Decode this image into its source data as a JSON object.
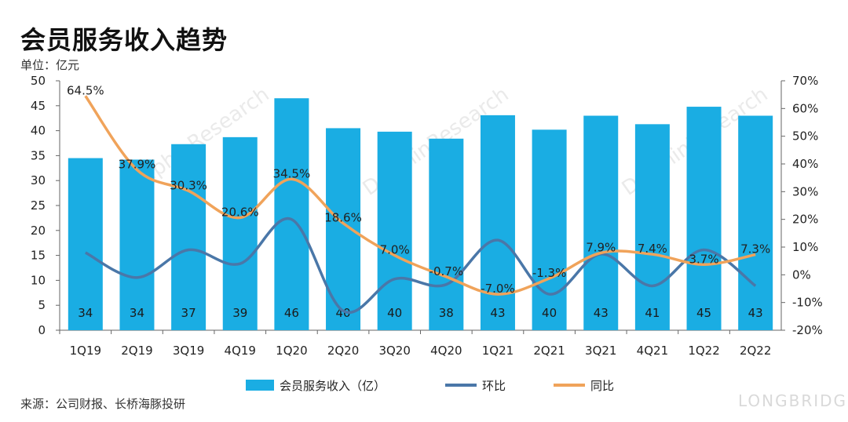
{
  "title": "会员服务收入趋势",
  "unit": "单位：亿元",
  "source": "来源：公司财报、长桥海豚投研",
  "watermark": {
    "brand": "DolphinResearch",
    "logo": "LONGBRIDGE"
  },
  "colors": {
    "bar": "#1AADE3",
    "qoq": "#4A77A8",
    "yoy": "#F0A35A"
  },
  "chart_data": {
    "type": "bar",
    "categories": [
      "1Q19",
      "2Q19",
      "3Q19",
      "4Q19",
      "1Q20",
      "2Q20",
      "3Q20",
      "4Q20",
      "1Q21",
      "2Q21",
      "3Q21",
      "4Q21",
      "1Q22",
      "2Q22"
    ],
    "left_axis": {
      "ylim": [
        0,
        50
      ],
      "ticks": [
        "0",
        "5",
        "10",
        "15",
        "20",
        "25",
        "30",
        "35",
        "40",
        "45",
        "50"
      ]
    },
    "right_axis": {
      "ylim": [
        -20,
        70
      ],
      "ticks": [
        "-20%",
        "-10%",
        "0%",
        "10%",
        "20%",
        "30%",
        "40%",
        "50%",
        "60%",
        "70%"
      ]
    },
    "legend": {
      "position": "bottom"
    },
    "series": [
      {
        "name": "会员服务收入（亿）",
        "type": "bar",
        "axis": "left",
        "values": [
          34.5,
          34.2,
          37.3,
          38.7,
          46.5,
          40.5,
          39.8,
          38.4,
          43.1,
          40.2,
          43.0,
          41.3,
          44.8,
          43.0
        ],
        "labels": [
          "34",
          "34",
          "37",
          "39",
          "46",
          "40",
          "40",
          "38",
          "43",
          "40",
          "43",
          "41",
          "45",
          "43"
        ]
      },
      {
        "name": "环比",
        "type": "line",
        "axis": "right",
        "values": [
          8,
          -1,
          9,
          4,
          20,
          -13,
          -1.5,
          -3.5,
          12.5,
          -7,
          7.5,
          -4,
          9,
          -4
        ]
      },
      {
        "name": "同比",
        "type": "line",
        "axis": "right",
        "values": [
          64.5,
          37.9,
          30.3,
          20.6,
          34.5,
          18.6,
          7.0,
          -0.7,
          -7.0,
          -1.3,
          7.9,
          7.4,
          3.7,
          7.3
        ],
        "labels": [
          "64.5%",
          "37.9%",
          "30.3%",
          "20.6%",
          "34.5%",
          "18.6%",
          "7.0%",
          "-0.7%",
          "-7.0%",
          "-1.3%",
          "7.9%",
          "7.4%",
          "3.7%",
          "7.3%"
        ]
      }
    ]
  }
}
